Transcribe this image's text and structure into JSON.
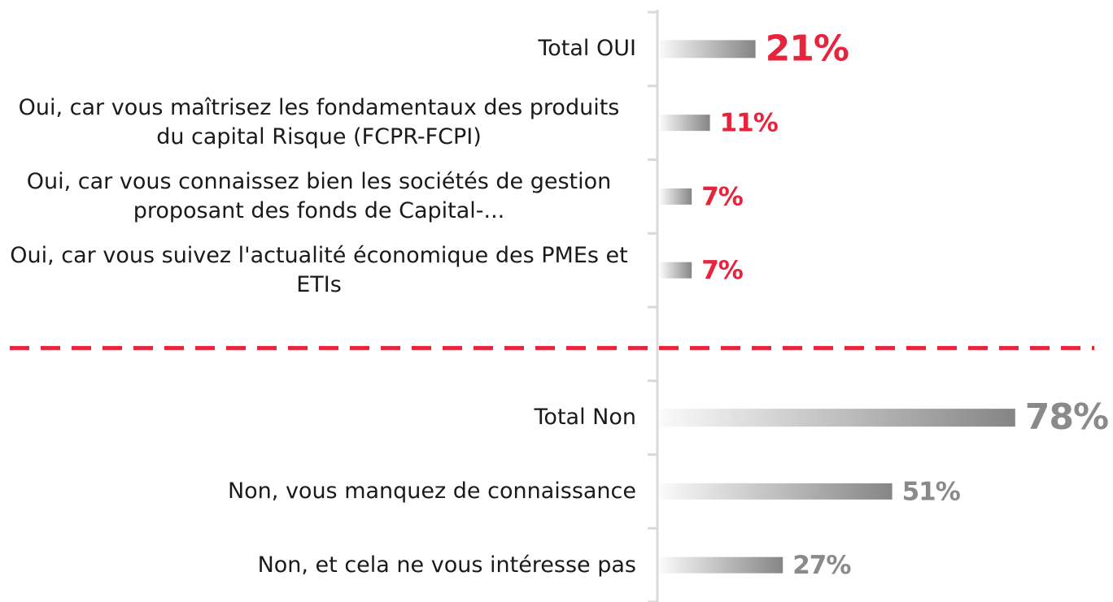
{
  "chart_data": {
    "type": "bar",
    "orientation": "horizontal",
    "categories": [
      "Total OUI",
      "Oui, car vous maîtrisez les fondamentaux des produits du capital Risque (FCPR-FCPI)",
      "Oui, car vous connaissez bien les sociétés de gestion proposant des fonds de Capital-...",
      "Oui, car vous suivez l'actualité économique des PMEs et ETIs",
      null,
      "Total Non",
      "Non, vous manquez de connaissance",
      "Non, et cela ne vous intéresse pas"
    ],
    "values": [
      21,
      11,
      7,
      7,
      null,
      78,
      51,
      27
    ],
    "value_labels": [
      "21%",
      "11%",
      "7%",
      "7%",
      null,
      "78%",
      "51%",
      "27%"
    ],
    "label_colors": [
      "#e8233c",
      "#e8233c",
      "#e8233c",
      "#e8233c",
      null,
      "#8a8a8a",
      "#8a8a8a",
      "#8a8a8a"
    ],
    "bar_color": "#858585",
    "separator_color": "#e8233c",
    "xlim": [
      0,
      80
    ]
  }
}
